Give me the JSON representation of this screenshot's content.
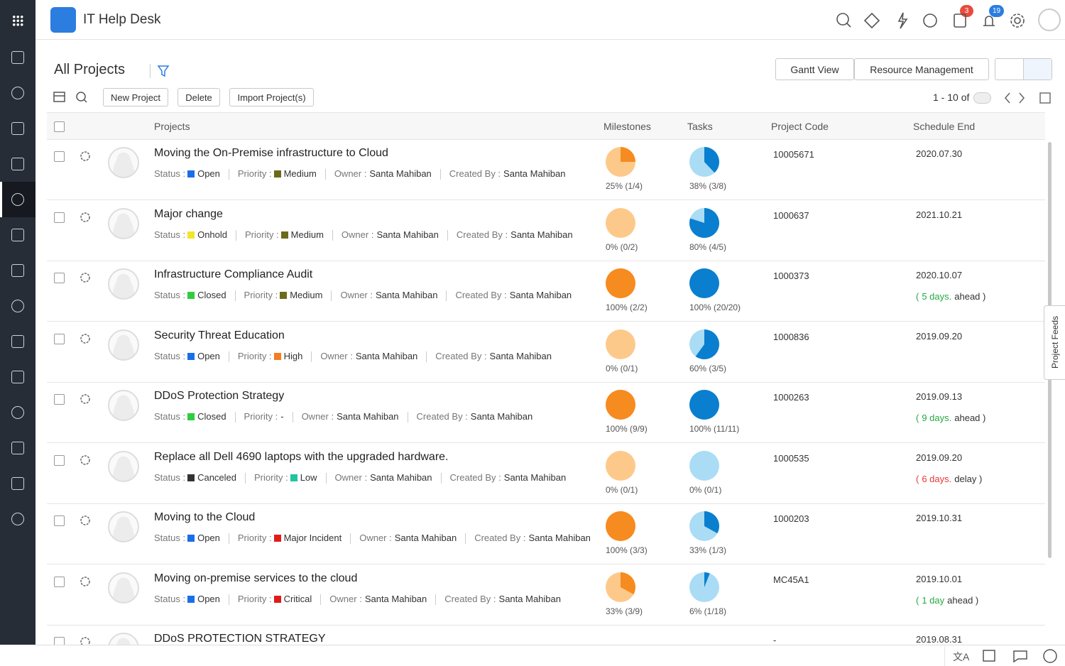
{
  "header": {
    "title": "IT Help Desk",
    "badges": [
      "3",
      "19"
    ]
  },
  "toolbar": {
    "view": "All Projects",
    "buttons": [
      "New Project",
      "Delete",
      "Import Project(s)"
    ],
    "views": [
      "Gantt View",
      "Resource Management"
    ],
    "pagination": "1 - 10 of"
  },
  "side_tab": "Project Feeds",
  "table": {
    "columns": [
      "Projects",
      "Milestones",
      "Tasks",
      "Project Code",
      "Schedule End"
    ],
    "field_labels": {
      "status": "Status :",
      "priority": "Priority :",
      "owner": "Owner :",
      "created_by": "Created By :"
    },
    "rows": [
      {
        "title": "Moving the On-Premise infrastructure to Cloud",
        "status": {
          "text": "Open",
          "color": "#1a6ee8"
        },
        "priority": {
          "text": "Medium",
          "color": "#6b6b1a"
        },
        "owner": "Santa Mahiban",
        "created_by": "Santa Mahiban",
        "milestones": {
          "value": 25,
          "label": "25% (1/4)"
        },
        "tasks": {
          "value": 38,
          "label": "38% (3/8)"
        },
        "code": "10005671",
        "schedule_end": "2020.07.30"
      },
      {
        "title": "Major change",
        "status": {
          "text": "Onhold",
          "color": "#f2e52a"
        },
        "priority": {
          "text": "Medium",
          "color": "#6b6b1a"
        },
        "owner": "Santa Mahiban",
        "created_by": "Santa Mahiban",
        "milestones": {
          "value": 0,
          "label": "0% (0/2)"
        },
        "tasks": {
          "value": 80,
          "label": "80% (4/5)"
        },
        "code": "1000637",
        "schedule_end": "2021.10.21"
      },
      {
        "title": "Infrastructure Compliance Audit",
        "status": {
          "text": "Closed",
          "color": "#2ecc40"
        },
        "priority": {
          "text": "Medium",
          "color": "#6b6b1a"
        },
        "owner": "Santa Mahiban",
        "created_by": "Santa Mahiban",
        "milestones": {
          "value": 100,
          "label": "100% (2/2)"
        },
        "tasks": {
          "value": 100,
          "label": "100% (20/20)"
        },
        "code": "1000373",
        "schedule_end": "2020.10.07",
        "note": {
          "prefix": "(",
          "amount": "5 days.",
          "suffix": "ahead )",
          "color": "#27a844"
        }
      },
      {
        "title": "Security Threat Education",
        "status": {
          "text": "Open",
          "color": "#1a6ee8"
        },
        "priority": {
          "text": "High",
          "color": "#f57c1f"
        },
        "owner": "Santa Mahiban",
        "created_by": "Santa Mahiban",
        "milestones": {
          "value": 0,
          "label": "0% (0/1)"
        },
        "tasks": {
          "value": 60,
          "label": "60% (3/5)"
        },
        "code": "1000836",
        "schedule_end": "2019.09.20"
      },
      {
        "title": "DDoS Protection Strategy",
        "status": {
          "text": "Closed",
          "color": "#2ecc40"
        },
        "priority": {
          "text": "-"
        },
        "owner": "Santa Mahiban",
        "created_by": "Santa Mahiban",
        "milestones": {
          "value": 100,
          "label": "100% (9/9)"
        },
        "tasks": {
          "value": 100,
          "label": "100% (11/11)"
        },
        "code": "1000263",
        "schedule_end": "2019.09.13",
        "note": {
          "prefix": "(",
          "amount": "9 days.",
          "suffix": "ahead )",
          "color": "#27a844"
        }
      },
      {
        "title": "Replace all Dell 4690 laptops with the upgraded hardware.",
        "status": {
          "text": "Canceled",
          "color": "#333333"
        },
        "priority": {
          "text": "Low",
          "color": "#1fc4a0"
        },
        "owner": "Santa Mahiban",
        "created_by": "Santa Mahiban",
        "milestones": {
          "value": 0,
          "label": "0% (0/1)"
        },
        "tasks": {
          "value": 0,
          "label": "0% (0/1)"
        },
        "code": "1000535",
        "schedule_end": "2019.09.20",
        "note": {
          "prefix": "(",
          "amount": "6 days.",
          "suffix": "delay )",
          "color": "#e53935"
        }
      },
      {
        "title": "Moving to the Cloud",
        "status": {
          "text": "Open",
          "color": "#1a6ee8"
        },
        "priority": {
          "text": "Major Incident",
          "color": "#e31b1b"
        },
        "owner": "Santa Mahiban",
        "created_by": "Santa Mahiban",
        "milestones": {
          "value": 100,
          "label": "100% (3/3)"
        },
        "tasks": {
          "value": 33,
          "label": "33% (1/3)"
        },
        "code": "1000203",
        "schedule_end": "2019.10.31"
      },
      {
        "title": "Moving on-premise services to the cloud",
        "status": {
          "text": "Open",
          "color": "#1a6ee8"
        },
        "priority": {
          "text": "Critical",
          "color": "#e01b1b"
        },
        "owner": "Santa Mahiban",
        "created_by": "Santa Mahiban",
        "milestones": {
          "value": 33,
          "label": "33% (3/9)"
        },
        "tasks": {
          "value": 6,
          "label": "6% (1/18)"
        },
        "code": "MC45A1",
        "schedule_end": "2019.10.01",
        "note": {
          "prefix": "(",
          "amount": "1 day",
          "suffix": "ahead )",
          "color": "#27a844"
        }
      },
      {
        "title": "DDoS PROTECTION STRATEGY",
        "code": "-",
        "schedule_end": "2019.08.31"
      }
    ]
  }
}
